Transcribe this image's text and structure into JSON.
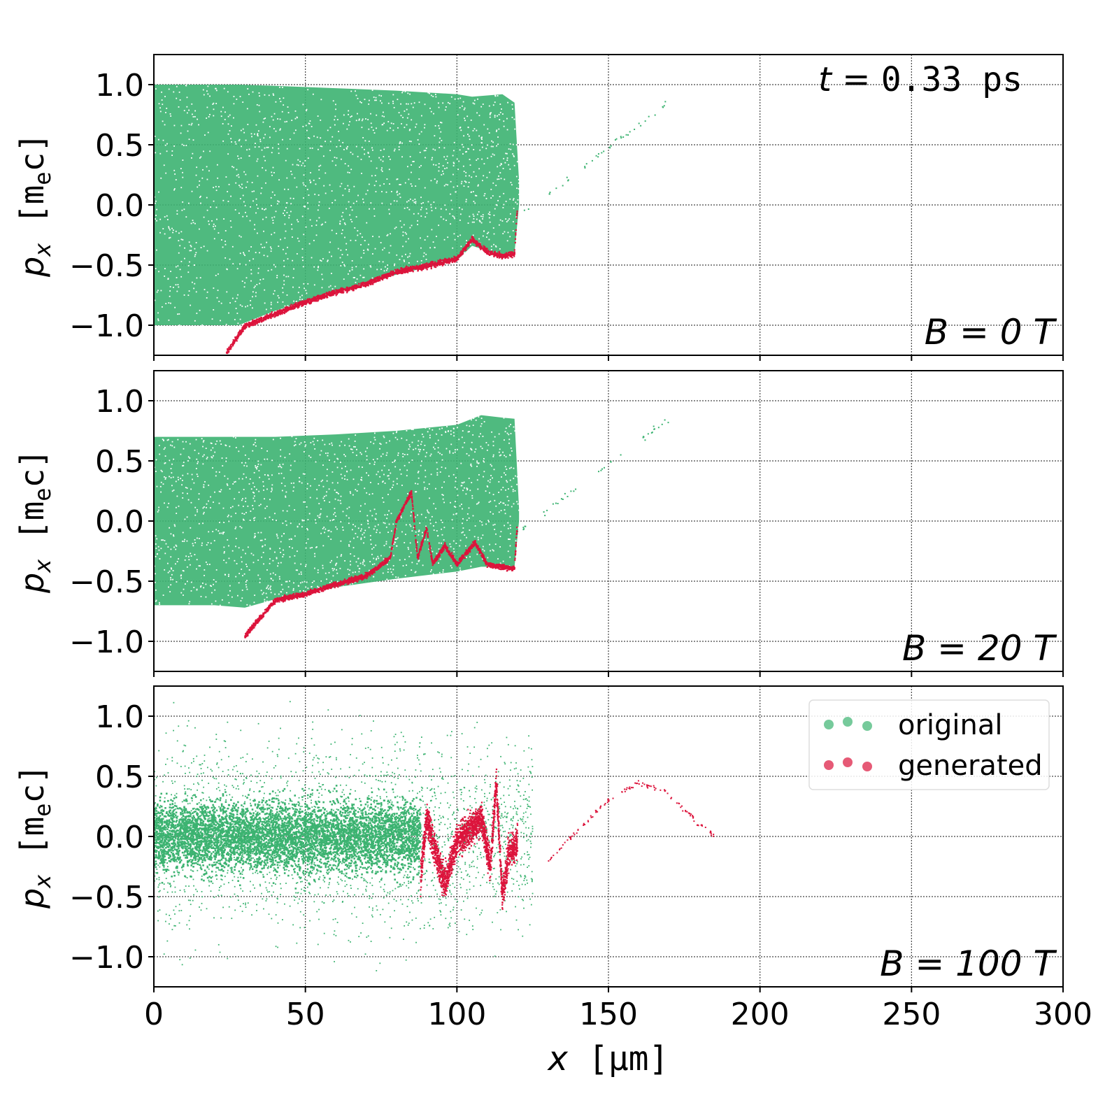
{
  "chart_data": [
    {
      "type": "scatter",
      "annotation": "B = 0 T",
      "time_label": {
        "var": "t",
        "eq": " = ",
        "value": "0.33 ps"
      },
      "xlim": [
        0,
        300
      ],
      "ylim": [
        -1.25,
        1.25
      ],
      "ylabel": {
        "main": "p",
        "sub": "x",
        "unit_open": " [m",
        "unit_sub": "e",
        "unit_close": "c]"
      },
      "yticks": [
        1.0,
        0.5,
        0.0,
        -0.5,
        -1.0
      ],
      "ytick_labels": [
        "1.0",
        "0.5",
        "0.0",
        "−0.5",
        "−1.0"
      ],
      "grid": true,
      "series": [
        {
          "name": "original",
          "color": "#3CB371",
          "envelope": {
            "x": [
              0,
              20,
              28,
              40,
              60,
              80,
              100,
              105,
              115,
              119,
              120.5
            ],
            "upper": [
              1.0,
              1.0,
              1.0,
              0.99,
              0.97,
              0.95,
              0.92,
              0.9,
              0.92,
              0.85,
              0.2
            ],
            "lower": [
              -1.0,
              -1.0,
              -1.0,
              -0.88,
              -0.72,
              -0.58,
              -0.46,
              -0.34,
              -0.42,
              -0.4,
              0.0
            ]
          }
        },
        {
          "name": "generated",
          "color": "#DC143C",
          "curve": {
            "x": [
              24,
              30,
              40,
              50,
              60,
              70,
              80,
              90,
              100,
              105,
              110,
              115,
              119,
              120
            ],
            "y": [
              -1.22,
              -1.0,
              -0.9,
              -0.8,
              -0.72,
              -0.65,
              -0.55,
              -0.5,
              -0.44,
              -0.28,
              -0.38,
              -0.42,
              -0.4,
              0.0
            ]
          }
        }
      ]
    },
    {
      "type": "scatter",
      "annotation": "B = 20 T",
      "xlim": [
        0,
        300
      ],
      "ylim": [
        -1.25,
        1.25
      ],
      "ylabel": {
        "main": "p",
        "sub": "x",
        "unit_open": " [m",
        "unit_sub": "e",
        "unit_close": "c]"
      },
      "yticks": [
        1.0,
        0.5,
        0.0,
        -0.5,
        -1.0
      ],
      "ytick_labels": [
        "1.0",
        "0.5",
        "0.0",
        "−0.5",
        "−1.0"
      ],
      "grid": true,
      "series": [
        {
          "name": "original",
          "color": "#3CB371",
          "envelope": {
            "x": [
              0,
              20,
              30,
              40,
              60,
              80,
              100,
              108,
              115,
              119,
              120.5
            ],
            "upper": [
              0.7,
              0.7,
              0.7,
              0.7,
              0.72,
              0.75,
              0.8,
              0.88,
              0.86,
              0.85,
              0.1
            ],
            "lower": [
              -0.7,
              -0.7,
              -0.72,
              -0.65,
              -0.55,
              -0.48,
              -0.42,
              -0.38,
              -0.38,
              -0.38,
              0.0
            ]
          }
        },
        {
          "name": "generated",
          "color": "#DC143C",
          "curve": {
            "x": [
              30,
              40,
              50,
              60,
              70,
              78,
              80,
              85,
              87,
              90,
              92,
              96,
              100,
              106,
              110,
              115,
              119,
              120
            ],
            "y": [
              -0.95,
              -0.65,
              -0.6,
              -0.52,
              -0.45,
              -0.3,
              0.0,
              0.25,
              -0.3,
              -0.05,
              -0.35,
              -0.2,
              -0.35,
              -0.17,
              -0.35,
              -0.38,
              -0.38,
              0.0
            ]
          }
        }
      ]
    },
    {
      "type": "scatter",
      "annotation": "B = 100 T",
      "xlim": [
        0,
        300
      ],
      "ylim": [
        -1.25,
        1.25
      ],
      "xlabel": {
        "main": "x",
        "unit": " [μm]"
      },
      "xticks": [
        0,
        50,
        100,
        150,
        200,
        250,
        300
      ],
      "xtick_labels": [
        "0",
        "50",
        "100",
        "150",
        "200",
        "250",
        "300"
      ],
      "ylabel": {
        "main": "p",
        "sub": "x",
        "unit_open": " [m",
        "unit_sub": "e",
        "unit_close": "c]"
      },
      "yticks": [
        1.0,
        0.5,
        0.0,
        -0.5,
        -1.0
      ],
      "ytick_labels": [
        "1.0",
        "0.5",
        "0.0",
        "−0.5",
        "−1.0"
      ],
      "grid": true,
      "legend": {
        "placement": "top-right",
        "entries": [
          {
            "label": "original",
            "color": "#3CB371"
          },
          {
            "label": "generated",
            "color": "#DC143C"
          }
        ]
      },
      "series": [
        {
          "name": "original",
          "color": "#3CB371",
          "core": {
            "x": [
              0,
              88
            ],
            "y_spread": 0.5,
            "tail_spread": 1.25,
            "sparse_to_x": 125
          }
        },
        {
          "name": "generated",
          "color": "#DC143C",
          "curve": {
            "x": [
              88,
              90,
              93,
              96,
              100,
              104,
              108,
              111,
              113,
              115,
              117,
              120
            ],
            "y": [
              -0.3,
              0.2,
              -0.1,
              -0.35,
              0.0,
              0.1,
              0.2,
              -0.2,
              0.5,
              -0.45,
              -0.1,
              0.0
            ],
            "spread": 0.25
          },
          "arc": {
            "x": [
              130,
              140,
              150,
              160,
              170,
              180,
              185
            ],
            "y": [
              -0.2,
              0.05,
              0.3,
              0.45,
              0.35,
              0.1,
              0.0
            ]
          }
        }
      ]
    }
  ]
}
